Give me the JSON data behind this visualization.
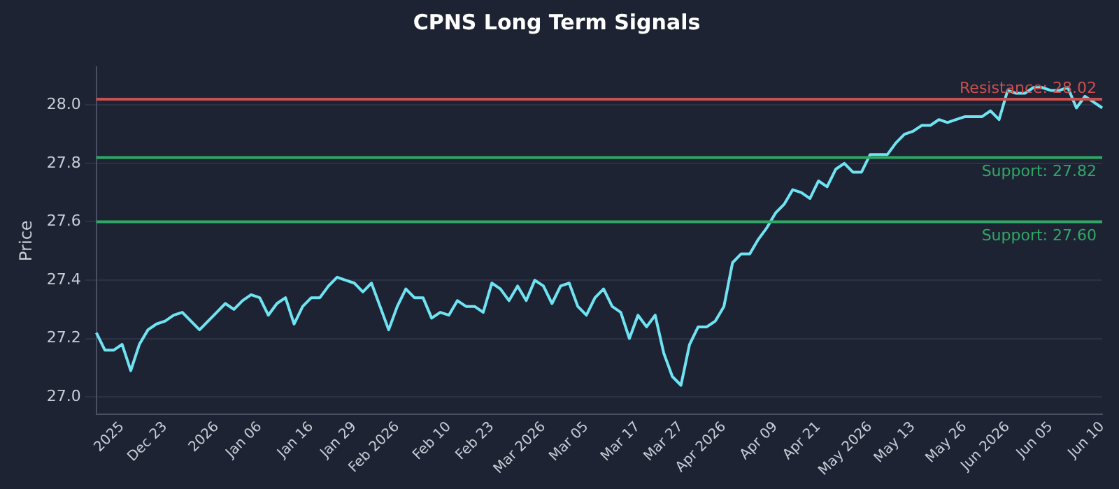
{
  "chart_data": {
    "type": "line",
    "title": "CPNS Long Term Signals",
    "ylabel": "Price",
    "categories": [
      null,
      null,
      null,
      "2025",
      null,
      null,
      null,
      null,
      "Dec 23",
      null,
      null,
      null,
      null,
      null,
      "2026",
      null,
      null,
      null,
      null,
      "Jan 06",
      null,
      null,
      null,
      null,
      null,
      "Jan 16",
      null,
      null,
      null,
      null,
      "Jan 29",
      null,
      null,
      null,
      null,
      "Feb 2026",
      null,
      null,
      null,
      null,
      null,
      "Feb 10",
      null,
      null,
      null,
      null,
      "Feb 23",
      null,
      null,
      null,
      null,
      null,
      "Mar 2026",
      null,
      null,
      null,
      null,
      "Mar 05",
      null,
      null,
      null,
      null,
      null,
      "Mar 17",
      null,
      null,
      null,
      null,
      "Mar 27",
      null,
      null,
      null,
      null,
      "Apr 2026",
      null,
      null,
      null,
      null,
      null,
      "Apr 09",
      null,
      null,
      null,
      null,
      "Apr 21",
      null,
      null,
      null,
      null,
      null,
      "May 2026",
      null,
      null,
      null,
      null,
      "May 13",
      null,
      null,
      null,
      null,
      null,
      "May 26",
      null,
      null,
      null,
      null,
      "Jun 2026",
      null,
      null,
      null,
      null,
      "Jun 05",
      null,
      null,
      null,
      null,
      null,
      "Jun 10"
    ],
    "series": [
      {
        "color": "#6fe3f2",
        "values": [
          27.22,
          27.16,
          27.16,
          27.18,
          27.09,
          27.18,
          27.23,
          27.25,
          27.26,
          27.28,
          27.29,
          27.26,
          27.23,
          27.26,
          27.29,
          27.32,
          27.3,
          27.33,
          27.35,
          27.34,
          27.28,
          27.32,
          27.34,
          27.25,
          27.31,
          27.34,
          27.34,
          27.38,
          27.41,
          27.4,
          27.39,
          27.36,
          27.39,
          27.31,
          27.23,
          27.31,
          27.37,
          27.34,
          27.34,
          27.27,
          27.29,
          27.28,
          27.33,
          27.31,
          27.31,
          27.29,
          27.39,
          27.37,
          27.33,
          27.38,
          27.33,
          27.4,
          27.38,
          27.32,
          27.38,
          27.39,
          27.31,
          27.28,
          27.34,
          27.37,
          27.31,
          27.29,
          27.2,
          27.28,
          27.24,
          27.28,
          27.15,
          27.07,
          27.04,
          27.18,
          27.24,
          27.24,
          27.26,
          27.31,
          27.46,
          27.49,
          27.49,
          27.54,
          27.58,
          27.63,
          27.66,
          27.71,
          27.7,
          27.68,
          27.74,
          27.72,
          27.78,
          27.8,
          27.77,
          27.77,
          27.83,
          27.83,
          27.83,
          27.87,
          27.9,
          27.91,
          27.93,
          27.93,
          27.95,
          27.94,
          27.95,
          27.96,
          27.96,
          27.96,
          27.98,
          27.95,
          28.05,
          28.04,
          28.04,
          28.06,
          28.06,
          28.05,
          28.05,
          28.06,
          27.99,
          28.03,
          28.01,
          27.99
        ]
      }
    ],
    "ylim": [
      26.94,
      28.13
    ],
    "yticks": [
      {
        "value": 27,
        "label": "27.0"
      },
      27.2,
      27.4,
      27.6,
      27.8,
      {
        "value": 28,
        "label": "28.0"
      }
    ],
    "ref_lines": [
      {
        "axis": "y",
        "value": 28.02,
        "label": "Resistance: 28.02",
        "color": "#c9504f"
      },
      {
        "axis": "y",
        "value": 27.82,
        "label": "Support: 27.82",
        "color": "#2fa865"
      },
      {
        "axis": "y",
        "value": 27.6,
        "label": "Support: 27.60",
        "color": "#2fa865"
      }
    ],
    "grid": "y",
    "legend": false,
    "marker": "none",
    "line_style": "solid"
  }
}
